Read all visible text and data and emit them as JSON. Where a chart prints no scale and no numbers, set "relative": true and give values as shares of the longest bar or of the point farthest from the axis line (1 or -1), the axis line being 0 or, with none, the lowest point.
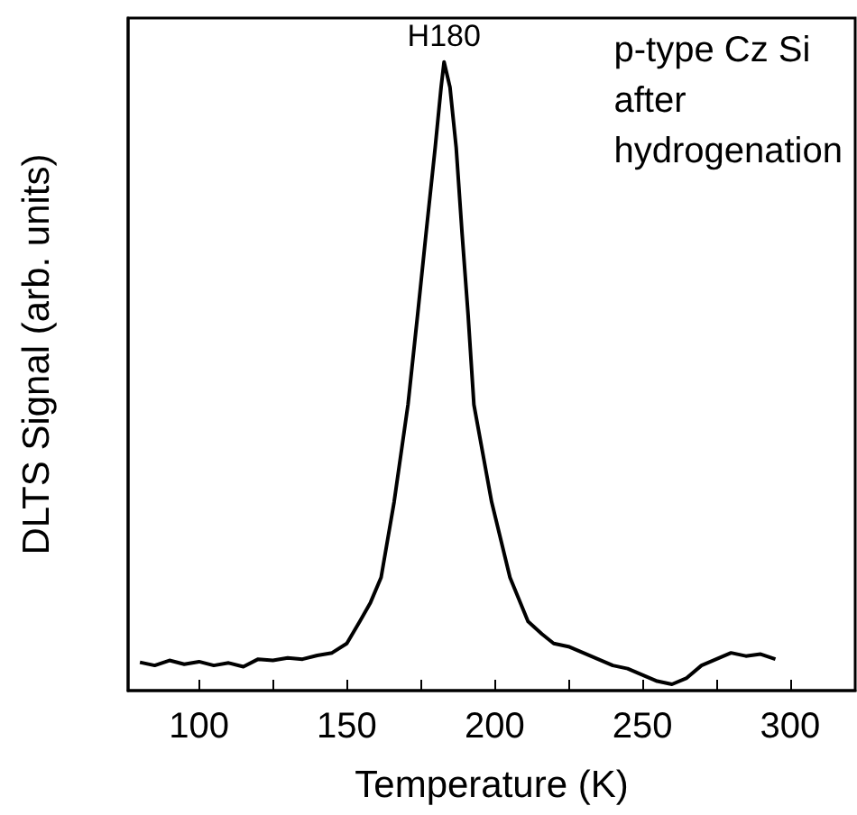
{
  "chart_data": {
    "type": "line",
    "relative": true,
    "xlabel": "Temperature (K)",
    "ylabel": "DLTS Signal (arb. units)",
    "xlim": [
      76,
      322
    ],
    "xticks": [
      100,
      {
        "value": 125,
        "label": null
      },
      150,
      {
        "value": 175,
        "label": null
      },
      200,
      {
        "value": 225,
        "label": null
      },
      250,
      {
        "value": 275,
        "label": null
      },
      300
    ],
    "x": [
      80,
      85,
      90,
      95,
      100,
      105,
      110,
      115,
      120,
      125,
      130,
      135,
      140,
      145,
      150,
      154.4,
      158,
      161.6,
      166,
      170.7,
      174,
      176.8,
      179.9,
      181.9,
      182.9,
      184.9,
      187,
      189,
      191,
      193,
      199,
      205.2,
      211.3,
      216,
      220,
      225,
      230,
      235,
      240,
      245,
      250,
      255,
      260,
      265,
      270,
      275,
      280,
      285,
      290,
      295
    ],
    "series": [
      {
        "color": "#000000",
        "values": [
          0.045,
          0.04,
          0.048,
          0.042,
          0.046,
          0.04,
          0.044,
          0.038,
          0.05,
          0.048,
          0.052,
          0.05,
          0.056,
          0.06,
          0.075,
          0.11,
          0.14,
          0.18,
          0.3,
          0.455,
          0.6,
          0.727,
          0.864,
          0.96,
          1,
          0.96,
          0.864,
          0.727,
          0.6,
          0.455,
          0.3,
          0.18,
          0.11,
          0.09,
          0.075,
          0.07,
          0.06,
          0.05,
          0.04,
          0.035,
          0.025,
          0.015,
          0.01,
          0.02,
          0.04,
          0.05,
          0.06,
          0.055,
          0.058,
          0.05
        ]
      }
    ],
    "annotations": [
      {
        "text": "H180",
        "x": 182.9,
        "y": 1
      },
      "p-type Cz Si\nafter\nhydrogenation"
    ]
  }
}
